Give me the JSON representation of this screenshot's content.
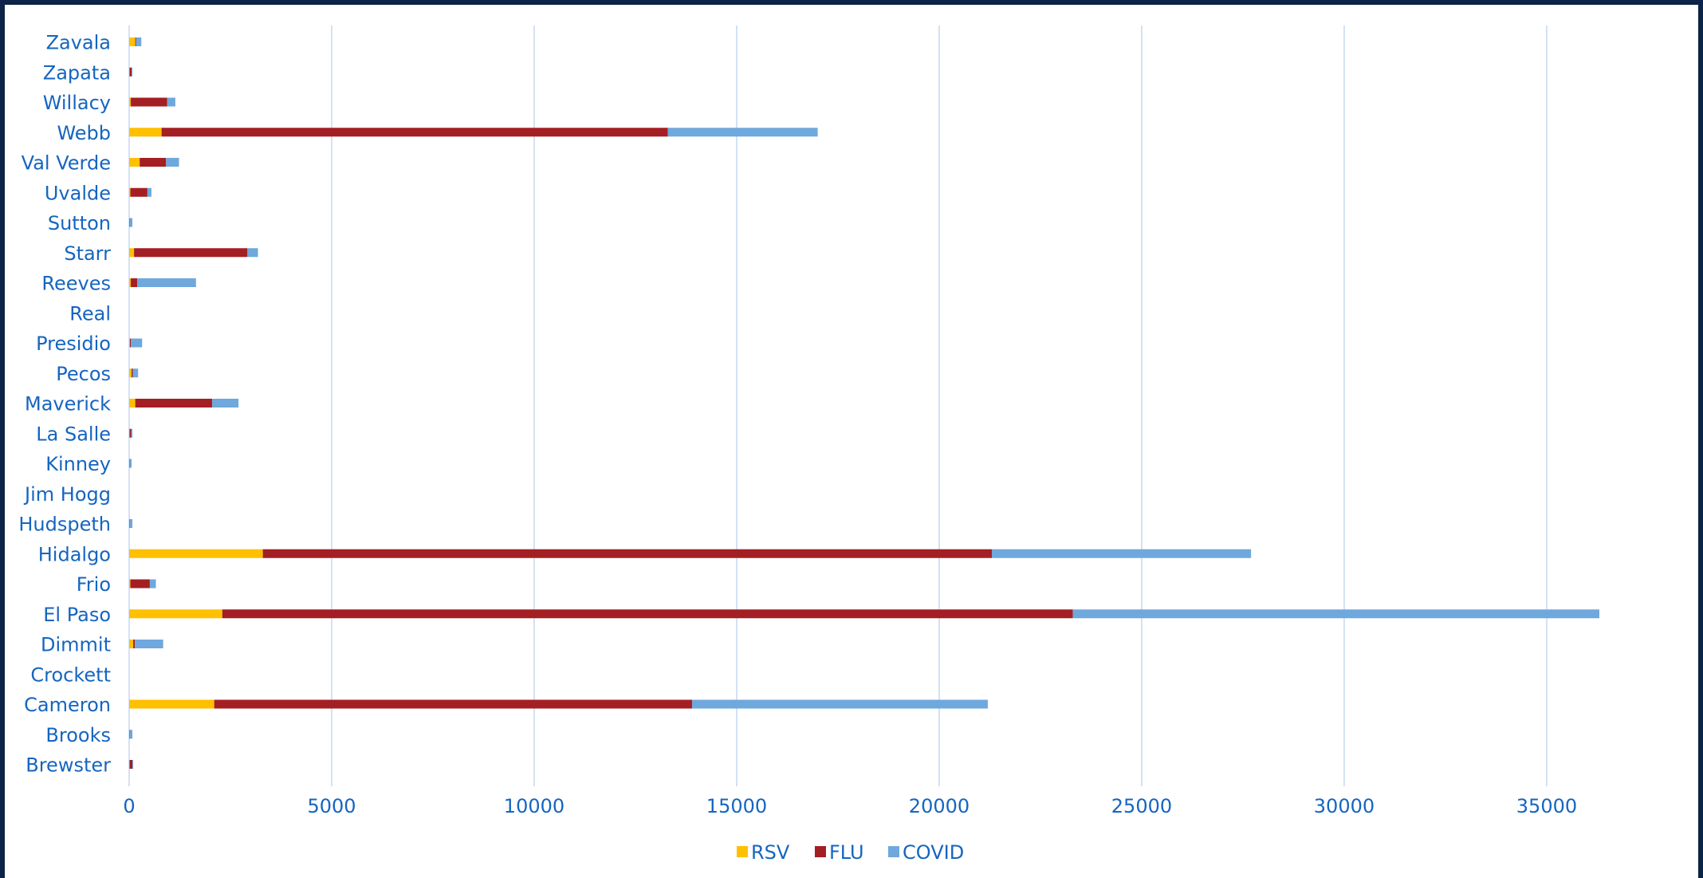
{
  "chart_data": {
    "type": "bar",
    "orientation": "horizontal",
    "stacked": true,
    "title": "",
    "xlabel": "",
    "ylabel": "",
    "xlim": [
      0,
      38500
    ],
    "x_ticks": [
      0,
      5000,
      10000,
      15000,
      20000,
      25000,
      30000,
      35000
    ],
    "grid": true,
    "legend_position": "bottom",
    "categories": [
      "Zavala",
      "Zapata",
      "Willacy",
      "Webb",
      "Val Verde",
      "Uvalde",
      "Sutton",
      "Starr",
      "Reeves",
      "Real",
      "Presidio",
      "Pecos",
      "Maverick",
      "La Salle",
      "Kinney",
      "Jim Hogg",
      "Hudspeth",
      "Hidalgo",
      "Frio",
      "El Paso",
      "Dimmit",
      "Crockett",
      "Cameron",
      "Brooks",
      "Brewster"
    ],
    "series": [
      {
        "name": "RSV",
        "color": "#ffc000",
        "values": [
          150,
          10,
          40,
          800,
          260,
          30,
          10,
          120,
          40,
          0,
          20,
          60,
          150,
          10,
          10,
          0,
          10,
          3300,
          30,
          2300,
          100,
          0,
          2100,
          10,
          10
        ]
      },
      {
        "name": "FLU",
        "color": "#a41f23",
        "values": [
          20,
          50,
          900,
          12500,
          650,
          420,
          10,
          2800,
          160,
          0,
          20,
          30,
          1900,
          40,
          10,
          0,
          10,
          18000,
          480,
          21000,
          40,
          0,
          11800,
          10,
          70
        ]
      },
      {
        "name": "COVID",
        "color": "#6fa8dc",
        "values": [
          130,
          20,
          200,
          3700,
          320,
          100,
          60,
          260,
          1450,
          0,
          280,
          130,
          650,
          30,
          40,
          0,
          60,
          6400,
          150,
          13000,
          700,
          0,
          7300,
          60,
          20
        ]
      }
    ]
  }
}
